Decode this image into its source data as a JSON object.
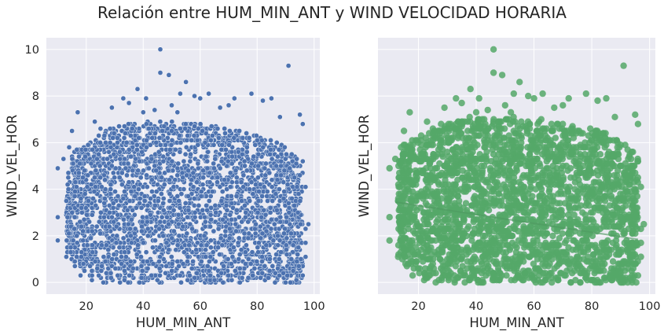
{
  "figure": {
    "title": "Relación entre HUM_MIN_ANT y WIND VELOCIDAD HORARIA",
    "background": "#ffffff",
    "axes_background": "#eaeaf2",
    "grid_color": "#ffffff"
  },
  "chart_data": [
    {
      "type": "scatter",
      "xlabel": "HUM_MIN_ANT",
      "ylabel": "WIND_VEL_HOR",
      "xlim": [
        6,
        102
      ],
      "ylim": [
        -0.5,
        10.5
      ],
      "xticks": [
        20,
        40,
        60,
        80,
        100
      ],
      "yticks": [
        0,
        2,
        4,
        6,
        8,
        10
      ],
      "grid": true,
      "color": "#4c72b0",
      "marker_edge": "#ffffff",
      "points": [
        [
          46,
          10.0
        ],
        [
          91,
          9.3
        ],
        [
          46,
          9.0
        ],
        [
          49,
          8.9
        ],
        [
          38,
          8.3
        ],
        [
          55,
          8.6
        ],
        [
          60,
          7.9
        ],
        [
          63,
          8.1
        ],
        [
          72,
          7.9
        ],
        [
          78,
          8.1
        ],
        [
          82,
          7.8
        ],
        [
          85,
          7.9
        ],
        [
          33,
          7.9
        ],
        [
          35,
          7.7
        ],
        [
          29,
          7.5
        ],
        [
          17,
          7.3
        ],
        [
          23,
          6.9
        ],
        [
          95,
          7.2
        ],
        [
          96,
          6.8
        ],
        [
          25,
          6.6
        ],
        [
          44,
          7.4
        ],
        [
          50,
          7.6
        ],
        [
          52,
          7.3
        ],
        [
          67,
          7.5
        ],
        [
          70,
          7.6
        ],
        [
          58,
          8.0
        ],
        [
          53,
          8.1
        ],
        [
          41,
          7.9
        ],
        [
          40,
          7.3
        ],
        [
          88,
          7.1
        ],
        [
          10,
          4.9
        ],
        [
          10,
          2.8
        ],
        [
          10,
          1.8
        ],
        [
          12,
          5.3
        ],
        [
          13,
          3.5
        ],
        [
          13,
          1.1
        ],
        [
          14,
          5.8
        ],
        [
          15,
          6.5
        ],
        [
          16,
          0.7
        ],
        [
          18,
          0.3
        ],
        [
          19,
          0.8
        ],
        [
          22,
          0.1
        ],
        [
          26,
          0.0
        ],
        [
          97,
          2.3
        ],
        [
          98,
          2.5
        ],
        [
          97,
          1.7
        ],
        [
          97,
          1.1
        ],
        [
          97,
          4.1
        ],
        [
          96,
          5.2
        ],
        [
          96,
          0.3
        ],
        [
          90,
          0.0
        ]
      ],
      "density": {
        "x_range": [
          13,
          96
        ],
        "y_max_at_x": [
          [
            12,
            4.2
          ],
          [
            15,
            5.5
          ],
          [
            20,
            6.0
          ],
          [
            25,
            6.4
          ],
          [
            30,
            6.7
          ],
          [
            40,
            6.9
          ],
          [
            50,
            6.9
          ],
          [
            60,
            6.8
          ],
          [
            70,
            6.6
          ],
          [
            80,
            6.3
          ],
          [
            88,
            6.0
          ],
          [
            93,
            5.5
          ],
          [
            96,
            5.0
          ]
        ],
        "y_min_at_x": [
          [
            12,
            1.5
          ],
          [
            15,
            1.0
          ],
          [
            20,
            0.4
          ],
          [
            25,
            0.1
          ],
          [
            27,
            0.0
          ],
          [
            96,
            0.0
          ]
        ]
      }
    },
    {
      "type": "scatter",
      "xlabel": "HUM_MIN_ANT",
      "ylabel": "WIND_VEL_HOR",
      "xlim": [
        6,
        102
      ],
      "ylim": [
        -0.5,
        10.5
      ],
      "xticks": [
        20,
        40,
        60,
        80,
        100
      ],
      "yticks": [
        0,
        2,
        4,
        6,
        8,
        10
      ],
      "grid": true,
      "color": "#55a868",
      "regression_line": {
        "x": [
          12,
          96
        ],
        "y": [
          3.45,
          1.85
        ]
      },
      "points": [
        [
          46,
          10.0
        ],
        [
          91,
          9.3
        ],
        [
          46,
          9.0
        ],
        [
          49,
          8.9
        ],
        [
          38,
          8.3
        ],
        [
          55,
          8.6
        ],
        [
          60,
          7.9
        ],
        [
          63,
          8.1
        ],
        [
          72,
          7.9
        ],
        [
          78,
          8.1
        ],
        [
          82,
          7.8
        ],
        [
          85,
          7.9
        ],
        [
          33,
          7.9
        ],
        [
          35,
          7.7
        ],
        [
          29,
          7.5
        ],
        [
          17,
          7.3
        ],
        [
          23,
          6.9
        ],
        [
          95,
          7.2
        ],
        [
          96,
          6.8
        ],
        [
          25,
          6.6
        ],
        [
          44,
          7.4
        ],
        [
          50,
          7.6
        ],
        [
          52,
          7.3
        ],
        [
          67,
          7.5
        ],
        [
          70,
          7.6
        ],
        [
          58,
          8.0
        ],
        [
          53,
          8.1
        ],
        [
          41,
          7.9
        ],
        [
          40,
          7.3
        ],
        [
          88,
          7.1
        ],
        [
          10,
          4.9
        ],
        [
          10,
          2.8
        ],
        [
          10,
          1.8
        ],
        [
          12,
          5.3
        ],
        [
          13,
          3.5
        ],
        [
          13,
          1.1
        ],
        [
          14,
          5.8
        ],
        [
          15,
          6.5
        ],
        [
          16,
          0.7
        ],
        [
          18,
          0.3
        ],
        [
          19,
          0.8
        ],
        [
          22,
          0.1
        ],
        [
          26,
          0.0
        ],
        [
          97,
          2.3
        ],
        [
          98,
          2.5
        ],
        [
          97,
          1.7
        ],
        [
          97,
          1.1
        ],
        [
          97,
          4.1
        ],
        [
          96,
          5.2
        ],
        [
          96,
          0.3
        ],
        [
          90,
          0.0
        ]
      ],
      "density": {
        "x_range": [
          13,
          96
        ],
        "y_max_at_x": [
          [
            12,
            4.6
          ],
          [
            15,
            6.0
          ],
          [
            20,
            6.3
          ],
          [
            25,
            6.6
          ],
          [
            30,
            6.9
          ],
          [
            40,
            7.1
          ],
          [
            50,
            7.1
          ],
          [
            60,
            7.0
          ],
          [
            70,
            6.9
          ],
          [
            80,
            6.6
          ],
          [
            88,
            6.3
          ],
          [
            93,
            5.8
          ],
          [
            96,
            5.3
          ]
        ],
        "y_min_at_x": [
          [
            12,
            1.3
          ],
          [
            15,
            0.8
          ],
          [
            20,
            0.3
          ],
          [
            25,
            0.0
          ],
          [
            96,
            0.0
          ]
        ]
      }
    }
  ]
}
